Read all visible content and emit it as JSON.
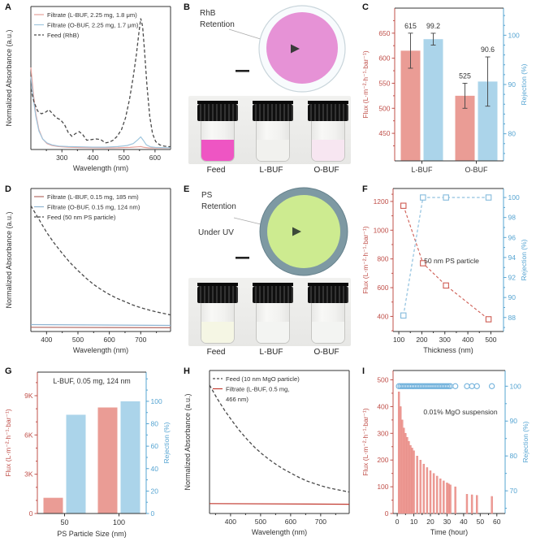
{
  "figure": {
    "background": "#ffffff"
  },
  "panels": {
    "A": {
      "label": "A"
    },
    "B": {
      "label": "B"
    },
    "C": {
      "label": "C"
    },
    "D": {
      "label": "D"
    },
    "E": {
      "label": "E"
    },
    "F": {
      "label": "F"
    },
    "G": {
      "label": "G"
    },
    "H": {
      "label": "H"
    },
    "I": {
      "label": "I"
    }
  },
  "photo_b": {
    "annotation_line1": "RhB",
    "annotation_line2": "Retention",
    "membrane_ring_color": "#f8fbfd",
    "membrane_edge_color": "#c9d5db",
    "membrane_inner_color": "#e692d6",
    "arrow_color": "#3a3a3a",
    "leader_color": "#aaaaaa",
    "scalebar_color": "#222222",
    "vial_labels": [
      "Feed",
      "L-BUF",
      "O-BUF"
    ],
    "liquid_colors": [
      "#ee55c3",
      "#f1f1ee",
      "#f7e6f1"
    ]
  },
  "photo_e": {
    "annotation_line1": "PS",
    "annotation_line2": "Retention",
    "annotation_line3": "Under UV",
    "membrane_ring_color": "#7e99a3",
    "membrane_edge_color": "#64808b",
    "membrane_inner_color": "#cdeb90",
    "arrow_color": "#3d4a3a",
    "leader_color": "#aaaaaa",
    "scalebar_color": "#222222",
    "vial_labels": [
      "Feed",
      "L-BUF",
      "O-BUF"
    ],
    "liquid_colors": [
      "#f5f6e4",
      "#f3f4f2",
      "#f3f4f2"
    ]
  },
  "chart_data": [
    {
      "panel": "A",
      "type": "line",
      "xlabel": "Wavelength (nm)",
      "ylabel": "Normalized Absorbance (a.u.)",
      "xlim": [
        200,
        650
      ],
      "xticks": [
        300,
        400,
        500,
        600
      ],
      "xminors": [
        250,
        350,
        450,
        550
      ],
      "ylim": [
        0,
        1.08
      ],
      "series": [
        {
          "name": "Filtrate (L-BUF, 2.25 mg, 1.8 μm)",
          "color": "#e5a09a",
          "dash": false,
          "x": [
            200,
            208,
            216,
            226,
            238,
            252,
            268,
            290,
            320,
            360,
            400,
            440,
            480,
            520,
            545,
            554,
            565,
            580,
            610,
            650
          ],
          "y": [
            0.62,
            0.42,
            0.27,
            0.15,
            0.08,
            0.045,
            0.03,
            0.022,
            0.018,
            0.015,
            0.013,
            0.012,
            0.013,
            0.016,
            0.02,
            0.022,
            0.016,
            0.012,
            0.011,
            0.011
          ]
        },
        {
          "name": "Filtrate (O-BUF, 2.25 mg, 1.7 μm)",
          "color": "#9fc6de",
          "dash": false,
          "x": [
            200,
            208,
            216,
            226,
            238,
            252,
            268,
            290,
            320,
            360,
            400,
            440,
            480,
            510,
            530,
            545,
            554,
            562,
            572,
            585,
            600,
            625,
            650
          ],
          "y": [
            0.55,
            0.38,
            0.25,
            0.14,
            0.08,
            0.05,
            0.035,
            0.026,
            0.022,
            0.02,
            0.018,
            0.018,
            0.022,
            0.03,
            0.045,
            0.075,
            0.095,
            0.07,
            0.035,
            0.02,
            0.016,
            0.014,
            0.013
          ]
        },
        {
          "name": "Feed (RhB)",
          "color": "#4a4a4a",
          "dash": true,
          "x": [
            200,
            210,
            222,
            234,
            246,
            258,
            270,
            282,
            295,
            308,
            320,
            332,
            344,
            356,
            368,
            380,
            395,
            410,
            425,
            440,
            452,
            465,
            478,
            492,
            505,
            518,
            530,
            540,
            548,
            554,
            560,
            566,
            574,
            583,
            592,
            602,
            615,
            630,
            650
          ],
          "y": [
            0.46,
            0.36,
            0.29,
            0.27,
            0.28,
            0.3,
            0.27,
            0.24,
            0.225,
            0.19,
            0.13,
            0.1,
            0.12,
            0.135,
            0.11,
            0.07,
            0.075,
            0.08,
            0.075,
            0.05,
            0.055,
            0.07,
            0.1,
            0.15,
            0.24,
            0.38,
            0.55,
            0.72,
            0.88,
            0.99,
            0.93,
            0.75,
            0.48,
            0.25,
            0.12,
            0.06,
            0.035,
            0.025,
            0.02
          ]
        }
      ]
    },
    {
      "panel": "C",
      "type": "dual-bar",
      "categories": [
        "L-BUF",
        "O-BUF"
      ],
      "flux": {
        "label": "Flux (L·m⁻²·h⁻¹·bar⁻¹)",
        "axis_color": "#c0504a",
        "bar_color": "#ea9c95",
        "values": [
          615,
          525
        ],
        "errors": [
          35,
          25
        ],
        "value_labels": [
          "615",
          "525"
        ],
        "ylim": [
          395,
          700
        ],
        "yticks": [
          450,
          500,
          550,
          600,
          650
        ],
        "yminors": [
          425,
          475,
          525,
          575,
          625,
          675
        ]
      },
      "rejection": {
        "label": "Rejection (%)",
        "axis_color": "#55a4d2",
        "bar_color": "#abd4ea",
        "values": [
          99.2,
          90.6
        ],
        "errors": [
          1.2,
          5.0
        ],
        "value_labels": [
          "99.2",
          "90.6"
        ],
        "ylim": [
          74.5,
          105.5
        ],
        "yticks": [
          80,
          90,
          100
        ],
        "yminors": [
          76,
          78,
          82,
          84,
          86,
          88,
          92,
          94,
          96,
          98,
          102,
          104
        ]
      }
    },
    {
      "panel": "D",
      "type": "line",
      "xlabel": "Wavelength (nm)",
      "ylabel": "Normalized Absorbance (a.u.)",
      "xlim": [
        350,
        795
      ],
      "xticks": [
        400,
        500,
        600,
        700
      ],
      "xminors": [
        450,
        550,
        650,
        750
      ],
      "ylim": [
        0,
        1.08
      ],
      "series": [
        {
          "name": "Filtrate (L-BUF, 0.15 mg, 185 nm)",
          "color": "#b36a64",
          "dash": false,
          "x": [
            350,
            795
          ],
          "y": [
            0.032,
            0.028
          ]
        },
        {
          "name": "Filtrate (O-BUF, 0.15 mg, 124 nm)",
          "color": "#8fb4d2",
          "dash": false,
          "x": [
            350,
            795
          ],
          "y": [
            0.052,
            0.046
          ]
        },
        {
          "name": "Feed (50 nm PS particle)",
          "color": "#4a4a4a",
          "dash": true,
          "x": [
            350,
            375,
            400,
            425,
            450,
            475,
            500,
            525,
            550,
            575,
            600,
            625,
            650,
            675,
            700,
            725,
            750,
            770,
            795
          ],
          "y": [
            0.95,
            0.85,
            0.75,
            0.665,
            0.59,
            0.52,
            0.46,
            0.405,
            0.355,
            0.315,
            0.28,
            0.25,
            0.225,
            0.2,
            0.18,
            0.163,
            0.148,
            0.138,
            0.125
          ]
        }
      ]
    },
    {
      "panel": "F",
      "type": "dual-line",
      "xlabel": "Thickness (nm)",
      "xlim": [
        75,
        555
      ],
      "xticks": [
        100,
        200,
        300,
        400,
        500
      ],
      "xminors": [
        150,
        250,
        350,
        450
      ],
      "annotation": "50 nm PS particle",
      "flux": {
        "label": "Flux (L·m⁻²·h⁻¹·bar⁻¹)",
        "axis_color": "#c0504a",
        "color": "#ce5b52",
        "x": [
          120,
          205,
          305,
          490
        ],
        "y": [
          1170,
          770,
          615,
          380
        ],
        "ylim": [
          295,
          1290
        ],
        "yticks": [
          400,
          600,
          800,
          1000,
          1200
        ],
        "yminors": [
          300,
          500,
          700,
          900,
          1100,
          1250
        ]
      },
      "rejection": {
        "label": "Rejection (%)",
        "axis_color": "#55a4d2",
        "color": "#85bbdc",
        "x": [
          120,
          205,
          305,
          490
        ],
        "y": [
          88.2,
          100,
          100,
          100
        ],
        "ylim": [
          86.6,
          100.9
        ],
        "yticks": [
          88,
          90,
          92,
          94,
          96,
          98,
          100
        ],
        "yminors": [
          87,
          89,
          91,
          93,
          95,
          97,
          99
        ]
      }
    },
    {
      "panel": "G",
      "type": "dual-bar",
      "title": "L-BUF, 0.05 mg, 124 nm",
      "xlabel": "PS Particle Size (nm)",
      "categories": [
        "50",
        "100"
      ],
      "flux": {
        "label": "Flux (L·m⁻²·h⁻¹·bar⁻¹)",
        "axis_color": "#c0504a",
        "bar_color": "#ea9c95",
        "values": [
          1200,
          8100
        ],
        "ylim": [
          0,
          10800
        ],
        "yticks": [
          0,
          3000,
          6000,
          9000
        ],
        "yticklabels": [
          "0",
          "3K",
          "6K",
          "9K"
        ],
        "yminors": [
          1000,
          2000,
          4000,
          5000,
          7000,
          8000,
          10000
        ]
      },
      "rejection": {
        "label": "Rejection (%)",
        "axis_color": "#55a4d2",
        "bar_color": "#abd4ea",
        "values": [
          88,
          100
        ],
        "ylim": [
          0,
          126
        ],
        "yticks": [
          0,
          20,
          40,
          60,
          80,
          100
        ],
        "yminors": [
          10,
          30,
          50,
          70,
          90,
          110,
          120
        ]
      }
    },
    {
      "panel": "H",
      "type": "line",
      "xlabel": "Wavelength (nm)",
      "ylabel": "Normalized Absorbance (a.u.)",
      "xlim": [
        330,
        795
      ],
      "xticks": [
        400,
        500,
        600,
        700
      ],
      "xminors": [
        350,
        450,
        550,
        650,
        750
      ],
      "ylim": [
        0,
        1.08
      ],
      "series": [
        {
          "name": "Feed (10 nm MgO particle)",
          "color": "#4a4a4a",
          "dash": true,
          "x": [
            330,
            355,
            380,
            405,
            430,
            455,
            480,
            505,
            530,
            555,
            580,
            605,
            630,
            655,
            680,
            705,
            730,
            755,
            795
          ],
          "y": [
            0.97,
            0.87,
            0.78,
            0.7,
            0.625,
            0.56,
            0.5,
            0.45,
            0.405,
            0.365,
            0.33,
            0.3,
            0.27,
            0.245,
            0.225,
            0.207,
            0.192,
            0.18,
            0.162
          ]
        },
        {
          "name": "Filtrate (L-BUF, 0.5 mg,",
          "name2": "466 nm)",
          "color": "#c23a30",
          "dash": false,
          "x": [
            330,
            795
          ],
          "y": [
            0.075,
            0.07
          ]
        }
      ]
    },
    {
      "panel": "I",
      "type": "bar-scatter",
      "xlabel": "Time (hour)",
      "xlim": [
        -2.5,
        65
      ],
      "xticks": [
        0,
        10,
        20,
        30,
        40,
        50,
        60
      ],
      "xminors": [
        5,
        15,
        25,
        35,
        45,
        55
      ],
      "annotation": "0.01% MgO suspension",
      "flux": {
        "label": "Flux (L·m⁻²·h⁻¹·bar⁻¹)",
        "axis_color": "#c0504a",
        "bar_color": "#ee9c96",
        "bar_edge": "#e4837d",
        "x": [
          1,
          2,
          3,
          4,
          5,
          6,
          7,
          8,
          9,
          10,
          12,
          14,
          16,
          18,
          20,
          22,
          24,
          26,
          28,
          30,
          31,
          32,
          35,
          42,
          45,
          48,
          57
        ],
        "y": [
          455,
          400,
          350,
          320,
          300,
          285,
          270,
          255,
          245,
          235,
          215,
          200,
          185,
          172,
          160,
          150,
          140,
          130,
          122,
          115,
          111,
          107,
          100,
          72,
          70,
          68,
          64
        ],
        "ylim": [
          0,
          535
        ],
        "yticks": [
          0,
          100,
          200,
          300,
          400,
          500
        ],
        "yminors": [
          50,
          150,
          250,
          350,
          450
        ]
      },
      "rejection": {
        "label": "Rejection (%)",
        "axis_color": "#55a4d2",
        "color": "#72b2dc",
        "x": [
          1,
          2,
          3,
          4,
          5,
          6,
          7,
          8,
          9,
          10,
          11,
          12,
          13,
          14,
          15,
          16,
          17,
          18,
          19,
          20,
          21,
          22,
          23,
          24,
          25,
          26,
          27,
          28,
          29,
          30,
          31,
          32,
          35,
          42,
          45,
          48,
          57
        ],
        "y": [
          100,
          100,
          100,
          100,
          100,
          100,
          100,
          100,
          100,
          100,
          100,
          100,
          100,
          100,
          100,
          100,
          100,
          100,
          100,
          100,
          100,
          100,
          100,
          100,
          100,
          100,
          100,
          100,
          100,
          100,
          100,
          100,
          100,
          100,
          100,
          100,
          100
        ],
        "ylim": [
          63.5,
          104.5
        ],
        "yticks": [
          70,
          80,
          90,
          100
        ],
        "yminors": [
          65,
          75,
          85,
          95
        ]
      }
    }
  ]
}
